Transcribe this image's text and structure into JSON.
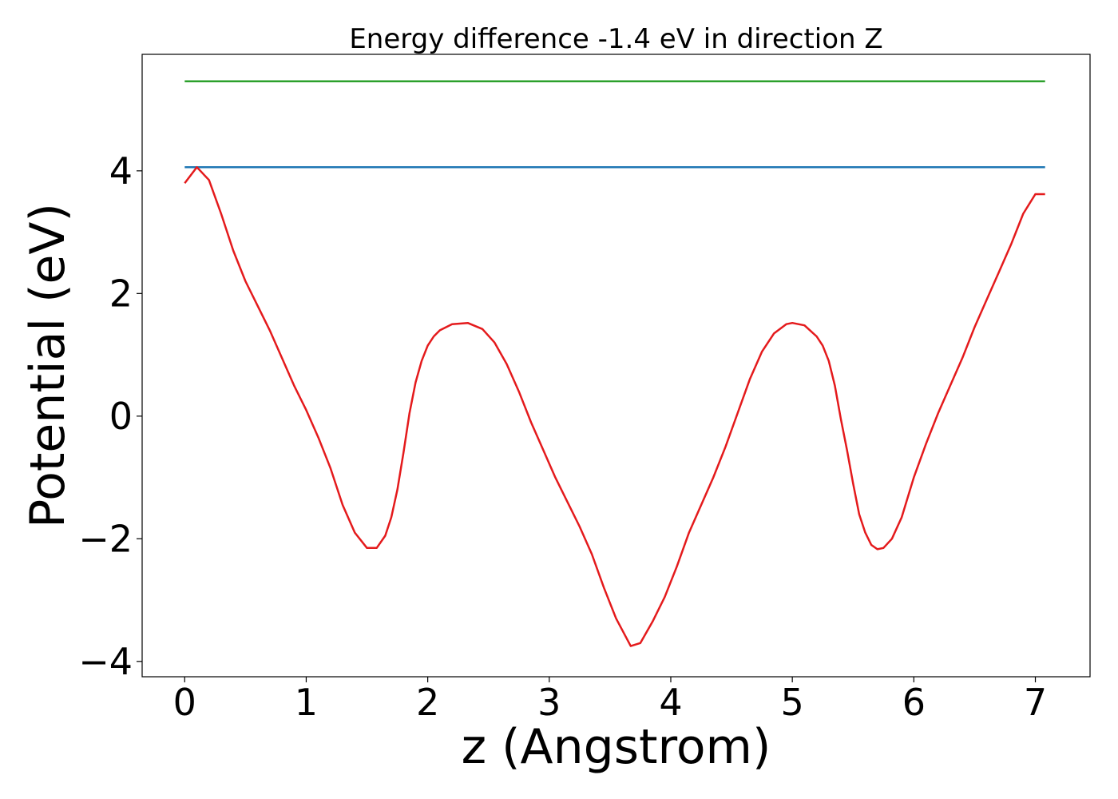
{
  "chart_data": {
    "type": "line",
    "title": "Energy difference -1.4 eV in direction Z",
    "xlabel": "z (Angstrom)",
    "ylabel": "Potential (eV)",
    "xlim": [
      -0.35,
      7.45
    ],
    "ylim": [
      -4.25,
      5.9
    ],
    "xticks": [
      0,
      1,
      2,
      3,
      4,
      5,
      6,
      7
    ],
    "xtick_labels": [
      "0",
      "1",
      "2",
      "3",
      "4",
      "5",
      "6",
      "7"
    ],
    "yticks": [
      -4,
      -2,
      0,
      2,
      4
    ],
    "ytick_labels": [
      "−4",
      "−2",
      "0",
      "2",
      "4"
    ],
    "grid": false,
    "series": [
      {
        "color": "#2ca02c",
        "x": [
          0,
          7.08
        ],
        "y": [
          5.46,
          5.46
        ]
      },
      {
        "color": "#1f77b4",
        "x": [
          0,
          7.08
        ],
        "y": [
          4.06,
          4.06
        ]
      },
      {
        "color": "#e41a1c",
        "x": [
          0,
          0.1,
          0.2,
          0.3,
          0.4,
          0.5,
          0.6,
          0.7,
          0.8,
          0.9,
          1.0,
          1.1,
          1.2,
          1.3,
          1.4,
          1.5,
          1.58,
          1.65,
          1.7,
          1.75,
          1.8,
          1.85,
          1.9,
          1.95,
          2.0,
          2.05,
          2.1,
          2.2,
          2.33,
          2.45,
          2.55,
          2.65,
          2.75,
          2.85,
          2.95,
          3.05,
          3.15,
          3.25,
          3.35,
          3.45,
          3.55,
          3.67,
          3.75,
          3.85,
          3.95,
          4.05,
          4.15,
          4.25,
          4.35,
          4.45,
          4.55,
          4.65,
          4.75,
          4.85,
          4.95,
          5.0,
          5.1,
          5.2,
          5.25,
          5.3,
          5.35,
          5.4,
          5.45,
          5.5,
          5.55,
          5.6,
          5.65,
          5.7,
          5.75,
          5.82,
          5.9,
          6.0,
          6.1,
          6.2,
          6.3,
          6.4,
          6.5,
          6.6,
          6.7,
          6.8,
          6.9,
          7.0,
          7.08
        ],
        "y": [
          3.8,
          4.06,
          3.85,
          3.3,
          2.7,
          2.2,
          1.8,
          1.4,
          0.95,
          0.5,
          0.1,
          -0.35,
          -0.85,
          -1.45,
          -1.9,
          -2.15,
          -2.15,
          -1.95,
          -1.65,
          -1.2,
          -0.6,
          0.05,
          0.55,
          0.9,
          1.15,
          1.3,
          1.4,
          1.5,
          1.52,
          1.42,
          1.2,
          0.85,
          0.4,
          -0.1,
          -0.55,
          -1.0,
          -1.4,
          -1.8,
          -2.25,
          -2.8,
          -3.3,
          -3.75,
          -3.7,
          -3.35,
          -2.95,
          -2.45,
          -1.9,
          -1.45,
          -1.0,
          -0.5,
          0.05,
          0.6,
          1.05,
          1.35,
          1.5,
          1.52,
          1.48,
          1.3,
          1.15,
          0.9,
          0.5,
          -0.05,
          -0.55,
          -1.1,
          -1.6,
          -1.9,
          -2.1,
          -2.17,
          -2.15,
          -2.0,
          -1.65,
          -1.0,
          -0.45,
          0.05,
          0.5,
          0.95,
          1.45,
          1.9,
          2.35,
          2.8,
          3.3,
          3.62,
          3.62
        ]
      }
    ]
  }
}
